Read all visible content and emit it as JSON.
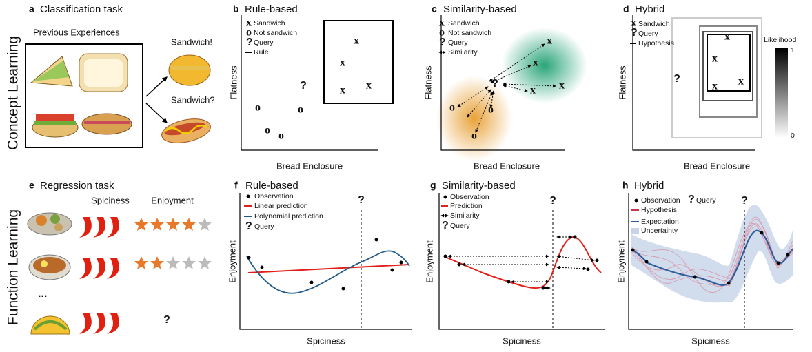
{
  "rows": [
    "Concept Learning",
    "Function Learning"
  ],
  "symbols": {
    "sandwich": "x",
    "not_sandwich": "o",
    "query": "?",
    "ellipsis": "..."
  },
  "panels": {
    "a": {
      "letter": "a",
      "title": "Classification task",
      "subtitle": "Previous Experiences",
      "labels": [
        "Sandwich!",
        "Sandwich?"
      ]
    },
    "b": {
      "letter": "b",
      "title": "Rule-based",
      "legend": [
        "Sandwich",
        "Not sandwich",
        "Query",
        "Rule"
      ],
      "x_label": "Bread Enclosure",
      "y_label": "Flatness"
    },
    "c": {
      "letter": "c",
      "title": "Similarity-based",
      "legend": [
        "Sandwich",
        "Not sandwich",
        "Query",
        "Similarity"
      ],
      "x_label": "Bread Enclosure",
      "y_label": "Flatness"
    },
    "d": {
      "letter": "d",
      "title": "Hybrid",
      "legend": [
        "Sandwich",
        "Query",
        "Hypothesis"
      ],
      "x_label": "Bread Enclosure",
      "y_label": "Flatness",
      "colorbar": {
        "title": "Likelihood",
        "max": 1,
        "min": 0
      }
    },
    "e": {
      "letter": "e",
      "title": "Regression task",
      "columns": [
        "Spiciness",
        "Enjoyment"
      ]
    },
    "f": {
      "letter": "f",
      "title": "Rule-based",
      "legend": [
        "Observation",
        "Linear prediction",
        "Polynomial prediction",
        "Query"
      ],
      "x_label": "Spiciness",
      "y_label": "Enjoyment"
    },
    "g": {
      "letter": "g",
      "title": "Similarity-based",
      "legend": [
        "Observation",
        "Prediction",
        "Similarity",
        "Query"
      ],
      "x_label": "Spiciness",
      "y_label": "Enjoyment"
    },
    "h": {
      "letter": "h",
      "title": "Hybrid",
      "legend": [
        "Observation",
        "Query",
        "Hypothesis",
        "Expectation",
        "Uncertainty"
      ],
      "x_label": "Spiciness",
      "y_label": "Enjoyment"
    }
  }
}
